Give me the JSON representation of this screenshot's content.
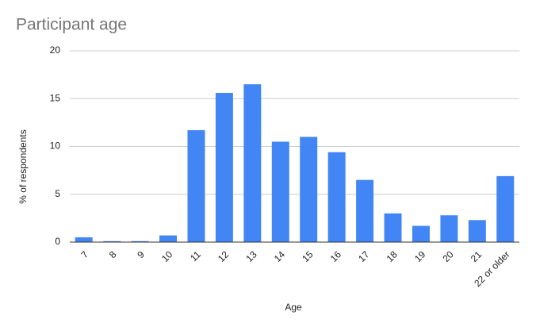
{
  "chart_data": {
    "type": "bar",
    "title": "Participant age",
    "x_label": "Age",
    "y_label": "% of respondents",
    "categories": [
      "7",
      "8",
      "9",
      "10",
      "11",
      "12",
      "13",
      "14",
      "15",
      "16",
      "17",
      "18",
      "19",
      "20",
      "21",
      "22 or older"
    ],
    "values": [
      0.5,
      0.1,
      0.1,
      0.7,
      11.7,
      15.6,
      16.5,
      10.5,
      11.0,
      9.4,
      6.5,
      3.0,
      1.7,
      2.8,
      2.3,
      6.9
    ],
    "color": "#4285f4",
    "ylim": [
      0,
      20
    ],
    "yticks": [
      0,
      5,
      10,
      15,
      20
    ],
    "grid": true
  }
}
